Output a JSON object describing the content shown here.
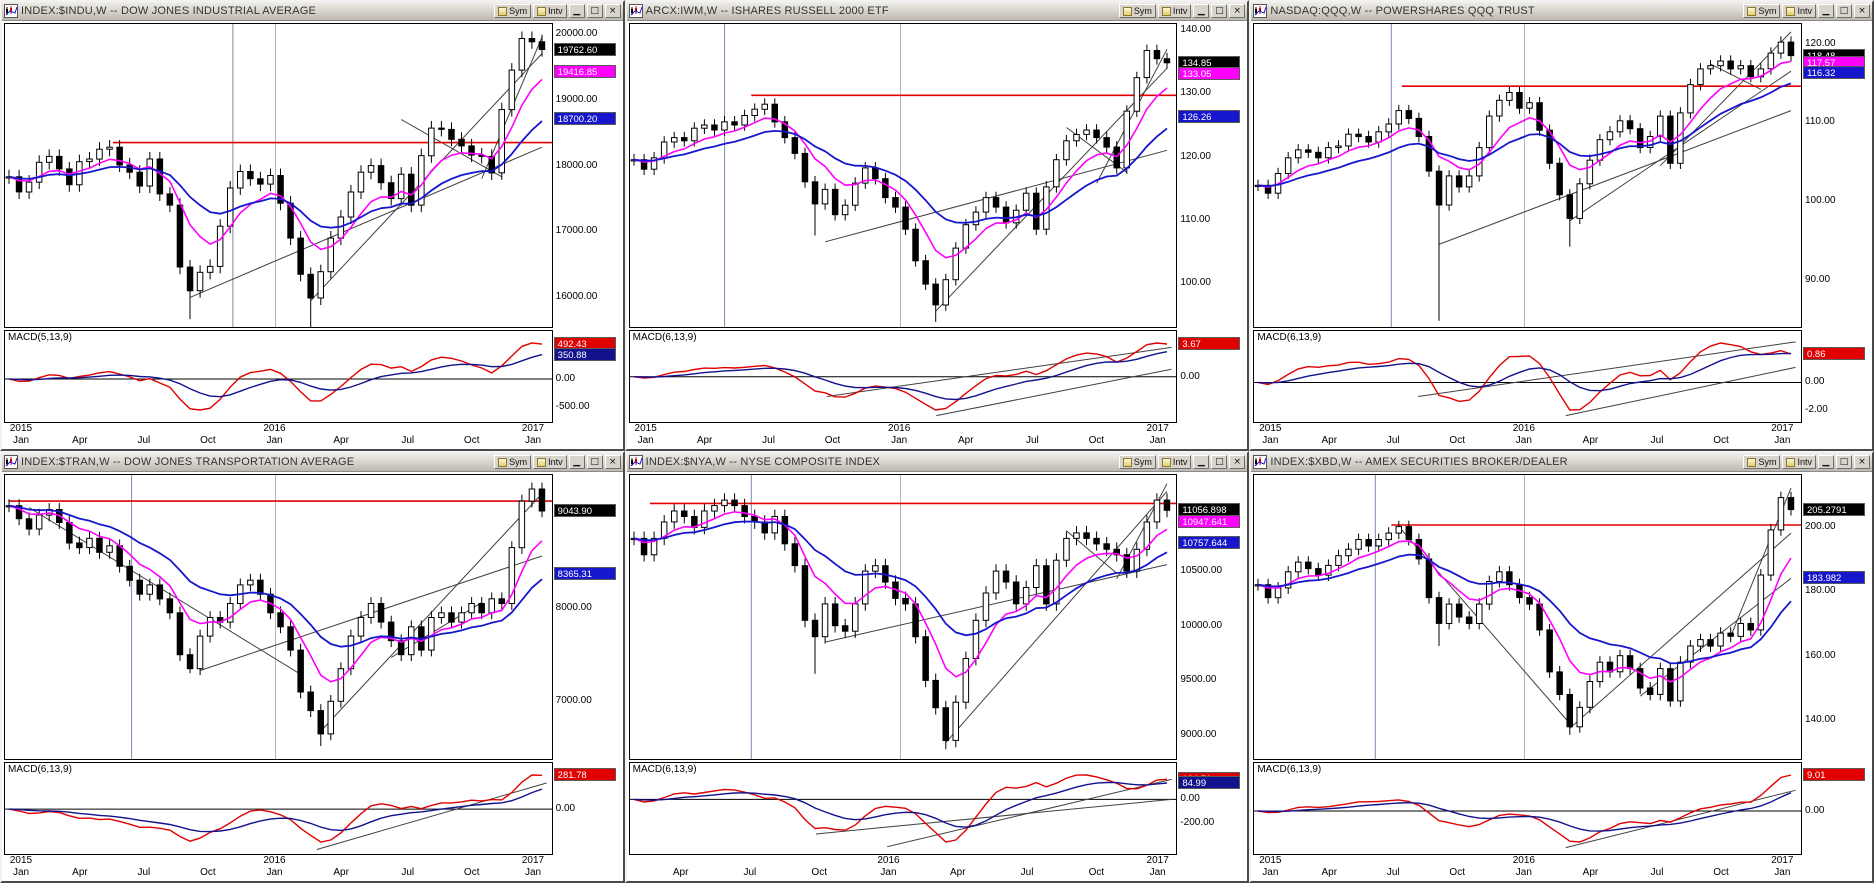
{
  "app": {
    "name": "multi-chart workspace",
    "background": "#808080"
  },
  "chrome": {
    "sym_label": "Sym",
    "intv_label": "Intv",
    "minimize_glyph": "▁",
    "restore_glyph": "□",
    "close_glyph": "×"
  },
  "colors": {
    "up_fill": "#ffffff",
    "down_fill": "#000000",
    "candle": "#000000",
    "ma_fast": "#ff00ff",
    "ma_slow": "#1616cc",
    "macd_line": "#e00000",
    "macd_signal": "#12128c",
    "resistance": "#e00000",
    "trendline": "#404040",
    "grid": "#b4b4b4",
    "cursor": "#7d88a8",
    "label_black": "#000000",
    "label_magenta": "#ff00ff",
    "label_blue": "#1616cc"
  },
  "default_xticks": [
    {
      "f": 0.02,
      "year": "2015",
      "month": "Jan"
    },
    {
      "f": 0.135,
      "month": "Apr"
    },
    {
      "f": 0.255,
      "month": "Jul"
    },
    {
      "f": 0.375,
      "month": "Oct"
    },
    {
      "f": 0.5,
      "year": "2016",
      "month": "Jan"
    },
    {
      "f": 0.625,
      "month": "Apr"
    },
    {
      "f": 0.75,
      "month": "Jul"
    },
    {
      "f": 0.87,
      "month": "Oct"
    },
    {
      "f": 0.985,
      "year": "2017",
      "month": "Jan"
    }
  ],
  "chart_data": [
    {
      "type": "candlestick",
      "title": "INDEX:$INDU,W -- DOW JONES INDUSTRIAL AVERAGE",
      "interval": "Weekly",
      "macd_label": "MACD(5,13,9)",
      "macd_params": [
        5,
        13,
        9
      ],
      "ylim": [
        15550,
        20150
      ],
      "yticks": [
        {
          "v": 20000,
          "label": "20000.00"
        },
        {
          "v": 19000,
          "label": "19000.00"
        },
        {
          "v": 18000,
          "label": "18000.00"
        },
        {
          "v": 17000,
          "label": "17000.00"
        },
        {
          "v": 16000,
          "label": "16000.00"
        }
      ],
      "closes": [
        17830,
        17600,
        17750,
        18050,
        18140,
        17950,
        17710,
        18060,
        18100,
        18250,
        18280,
        18010,
        17900,
        17690,
        18100,
        17570,
        17400,
        16460,
        16100,
        16380,
        16470,
        17080,
        17660,
        17910,
        17800,
        17720,
        17850,
        17430,
        16900,
        16350,
        15990,
        16390,
        16900,
        17220,
        17600,
        17900,
        18000,
        17740,
        17500,
        17870,
        17400,
        18150,
        18570,
        18550,
        18400,
        18300,
        18160,
        18140,
        17890,
        18850,
        19450,
        19930,
        19880,
        19762.6
      ],
      "spike_lows": [
        [
          18,
          15670
        ],
        [
          30,
          15500
        ]
      ],
      "resistance": {
        "value": 18350,
        "from": 0.195
      },
      "trendlines": [
        [
          18,
          16000,
          53,
          18280
        ],
        [
          30,
          15950,
          53,
          19700
        ],
        [
          47,
          17800,
          53,
          19950
        ],
        [
          39,
          18700,
          49,
          17830
        ]
      ],
      "vlines": [
        0.42
      ],
      "price_labels": [
        {
          "value": 19762.6,
          "text": "19762.60",
          "bg": "#000000"
        },
        {
          "value": 19416.85,
          "text": "19416.85",
          "bg": "#ff00ff"
        },
        {
          "value": 18700.2,
          "text": "18700.20",
          "bg": "#1616cc"
        }
      ],
      "macd_ticks": [
        {
          "v": 0,
          "label": "0.00"
        },
        {
          "v": -500,
          "label": "-500.00"
        }
      ],
      "macd_labels": [
        {
          "series": "macd",
          "text": "492.43",
          "bg": "#e00000"
        },
        {
          "series": "signal",
          "text": "350.88",
          "bg": "#12128c"
        }
      ],
      "macd_lines": []
    },
    {
      "type": "candlestick",
      "title": "ARCX:IWM,W -- ISHARES RUSSELL 2000 ETF",
      "interval": "Weekly",
      "macd_label": "MACD(6,13,9)",
      "macd_params": [
        6,
        13,
        9
      ],
      "ylim": [
        93,
        141
      ],
      "yticks": [
        {
          "v": 140,
          "label": "140.00"
        },
        {
          "v": 130,
          "label": "130.00"
        },
        {
          "v": 120,
          "label": "120.00"
        },
        {
          "v": 110,
          "label": "110.00"
        },
        {
          "v": 100,
          "label": "100.00"
        }
      ],
      "closes": [
        119.5,
        118.0,
        119.8,
        122.3,
        123.0,
        122.5,
        124.5,
        125.0,
        124.2,
        125.5,
        125.0,
        126.5,
        127.5,
        128.3,
        125.5,
        123.0,
        120.5,
        116.0,
        112.5,
        114.8,
        110.8,
        112.3,
        115.8,
        118.2,
        116.5,
        113.5,
        112.0,
        108.5,
        103.5,
        99.8,
        96.5,
        100.5,
        105.5,
        109.2,
        111.2,
        113.5,
        112.0,
        109.5,
        111.5,
        114.2,
        108.5,
        115.2,
        119.5,
        122.5,
        123.5,
        124.2,
        123.0,
        121.5,
        118.2,
        127.2,
        132.5,
        136.8,
        135.5,
        134.85
      ],
      "spike_lows": [
        [
          18,
          107.5
        ],
        [
          30,
          93.8
        ]
      ],
      "resistance": {
        "value": 129.7,
        "from": 0.22
      },
      "trendlines": [
        [
          19,
          106.5,
          53,
          121
        ],
        [
          30,
          95.5,
          53,
          134
        ],
        [
          46,
          115.8,
          53,
          137
        ],
        [
          43,
          124.6,
          49,
          117.5
        ]
      ],
      "vlines": [
        0.17
      ],
      "price_labels": [
        {
          "value": 134.85,
          "text": "134.85",
          "bg": "#000000"
        },
        {
          "value": 133.05,
          "text": "133.05",
          "bg": "#ff00ff"
        },
        {
          "value": 126.26,
          "text": "126.26",
          "bg": "#1616cc"
        }
      ],
      "macd_ticks": [
        {
          "v": 0,
          "label": "0.00"
        }
      ],
      "macd_labels": [
        {
          "series": "macd",
          "text": "3.67",
          "bg": "#e00000"
        }
      ],
      "macd_lines": [
        [
          0.36,
          0.72,
          0.99,
          0.18
        ],
        [
          0.56,
          0.93,
          0.99,
          0.42
        ]
      ]
    },
    {
      "type": "candlestick",
      "title": "NASDAQ:QQQ,W -- POWERSHARES QQQ TRUST",
      "interval": "Weekly",
      "macd_label": "MACD(6,13,9)",
      "macd_params": [
        6,
        13,
        9
      ],
      "ylim": [
        84,
        122.5
      ],
      "yticks": [
        {
          "v": 120,
          "label": "120.00"
        },
        {
          "v": 110,
          "label": "110.00"
        },
        {
          "v": 100,
          "label": "100.00"
        },
        {
          "v": 90,
          "label": "90.00"
        }
      ],
      "closes": [
        102.0,
        101.0,
        103.5,
        105.5,
        106.5,
        106.2,
        105.5,
        106.8,
        107.0,
        108.5,
        108.2,
        107.5,
        108.8,
        109.8,
        111.5,
        110.5,
        108.2,
        103.8,
        99.5,
        103.2,
        101.8,
        103.2,
        106.8,
        110.8,
        112.8,
        113.8,
        111.8,
        112.5,
        109.0,
        104.8,
        100.8,
        97.8,
        102.2,
        105.2,
        107.8,
        108.8,
        110.2,
        109.2,
        106.8,
        108.2,
        110.8,
        104.8,
        111.2,
        114.8,
        116.8,
        117.2,
        117.8,
        116.8,
        117.2,
        115.8,
        116.8,
        118.8,
        120.2,
        118.48
      ],
      "spike_lows": [
        [
          18,
          84.8
        ],
        [
          31,
          94.2
        ]
      ],
      "resistance": {
        "value": 114.6,
        "from": 0.27
      },
      "trendlines": [
        [
          31,
          97.5,
          53,
          116.5
        ],
        [
          18,
          94.5,
          53,
          111.5
        ],
        [
          40,
          104.5,
          53,
          121.5
        ],
        [
          45,
          117.4,
          50,
          114.2
        ]
      ],
      "vlines": [
        0.25
      ],
      "price_labels": [
        {
          "value": 118.48,
          "text": "118.48",
          "bg": "#000000"
        },
        {
          "value": 117.57,
          "text": "117.57",
          "bg": "#ff00ff"
        },
        {
          "value": 116.32,
          "text": "116.32",
          "bg": "#1616cc"
        }
      ],
      "macd_ticks": [
        {
          "v": 2,
          "label": "2.00"
        },
        {
          "v": 0,
          "label": "0.00"
        },
        {
          "v": -2,
          "label": "-2.00"
        }
      ],
      "macd_labels": [
        {
          "series": "macd",
          "text": "0.86",
          "bg": "#e00000"
        }
      ],
      "macd_lines": [
        [
          0.3,
          0.72,
          0.99,
          0.12
        ],
        [
          0.57,
          0.93,
          0.99,
          0.4
        ]
      ]
    },
    {
      "type": "candlestick",
      "title": "INDEX:$TRAN,W -- DOW JONES TRANSPORTATION AVERAGE",
      "interval": "Weekly",
      "macd_label": "MACD(6,13,9)",
      "macd_params": [
        6,
        13,
        9
      ],
      "ylim": [
        6380,
        9430
      ],
      "yticks": [
        {
          "v": 9000,
          "label": "9000.00"
        },
        {
          "v": 8000,
          "label": "8000.00"
        },
        {
          "v": 7000,
          "label": "7000.00"
        }
      ],
      "closes": [
        9100,
        8960,
        8850,
        9000,
        9060,
        8920,
        8700,
        8650,
        8750,
        8600,
        8670,
        8450,
        8300,
        8150,
        8250,
        8100,
        7950,
        7500,
        7350,
        7700,
        7900,
        7850,
        8050,
        8250,
        8300,
        8150,
        7950,
        7800,
        7550,
        7100,
        6900,
        6650,
        7000,
        7350,
        7700,
        7900,
        8050,
        7850,
        7650,
        7500,
        7800,
        7550,
        7900,
        7950,
        7850,
        7950,
        8050,
        7950,
        8100,
        8050,
        8650,
        9150,
        9280,
        9043.9
      ],
      "spike_lows": [
        [
          18,
          7300
        ],
        [
          31,
          6520
        ]
      ],
      "resistance": {
        "value": 9150,
        "from": 0.0
      },
      "trendlines": [
        [
          2,
          9080,
          29,
          7290
        ],
        [
          31,
          6680,
          53,
          9230
        ],
        [
          19,
          7330,
          53,
          8560
        ],
        [
          38,
          7470,
          47,
          8060
        ]
      ],
      "vlines": [
        0.23
      ],
      "price_labels": [
        {
          "value": 9043.9,
          "text": "9043.90",
          "bg": "#000000"
        },
        {
          "value": 8365.31,
          "text": "8365.31",
          "bg": "#1616cc"
        }
      ],
      "macd_ticks": [
        {
          "v": 0,
          "label": "0.00"
        }
      ],
      "macd_labels": [
        {
          "series": "macd",
          "text": "281.78",
          "bg": "#e00000"
        }
      ],
      "macd_lines": [
        [
          0.57,
          0.95,
          0.99,
          0.22
        ]
      ]
    },
    {
      "type": "candlestick",
      "title": "INDEX:$NYA,W -- NYSE COMPOSITE INDEX",
      "interval": "Weekly",
      "macd_label": "MACD(6,13,9)",
      "macd_params": [
        6,
        13,
        9
      ],
      "ylim": [
        8780,
        11380
      ],
      "yticks": [
        {
          "v": 10500,
          "label": "10500.00"
        },
        {
          "v": 10000,
          "label": "10000.00"
        },
        {
          "v": 9500,
          "label": "9500.00"
        },
        {
          "v": 9000,
          "label": "9000.00"
        }
      ],
      "closes": [
        10800,
        10650,
        10800,
        10950,
        11050,
        11000,
        10900,
        11050,
        11100,
        11150,
        11100,
        11000,
        10950,
        10850,
        11000,
        10750,
        10550,
        10050,
        9900,
        10200,
        10000,
        9950,
        10200,
        10500,
        10550,
        10400,
        10250,
        10200,
        9900,
        9500,
        9250,
        8950,
        9300,
        9700,
        10050,
        10300,
        10500,
        10400,
        10200,
        10350,
        10550,
        10200,
        10600,
        10800,
        10850,
        10800,
        10750,
        10700,
        10650,
        10500,
        10700,
        10950,
        11150,
        11056.9
      ],
      "spike_lows": [
        [
          18,
          9560
        ],
        [
          31,
          8870
        ]
      ],
      "resistance": {
        "value": 11120,
        "from": 0.03
      },
      "trendlines": [
        [
          31,
          8930,
          53,
          11230
        ],
        [
          19,
          9850,
          53,
          10560
        ],
        [
          43,
          10870,
          48,
          10480
        ],
        [
          48,
          10430,
          53,
          11300
        ]
      ],
      "vlines": [
        0.22
      ],
      "price_labels": [
        {
          "value": 11056.898,
          "text": "11056.898",
          "bg": "#000000"
        },
        {
          "value": 10947.641,
          "text": "10947.641",
          "bg": "#ff00ff"
        },
        {
          "value": 10757.644,
          "text": "10757.644",
          "bg": "#1616cc"
        }
      ],
      "macd_ticks": [
        {
          "v": 0,
          "label": "0.00"
        },
        {
          "v": -200,
          "label": "-200.00"
        }
      ],
      "macd_labels": [
        {
          "series": "macd",
          "text": "134.51",
          "bg": "#e00000"
        },
        {
          "series": "signal",
          "text": "84.99",
          "bg": "#12128c"
        }
      ],
      "macd_lines": [
        [
          0.34,
          0.78,
          0.99,
          0.4
        ],
        [
          0.47,
          0.92,
          0.99,
          0.18
        ]
      ],
      "xticks": [
        {
          "f": 0.09,
          "month": "Apr"
        },
        {
          "f": 0.22,
          "month": "Jul"
        },
        {
          "f": 0.35,
          "month": "Oct"
        },
        {
          "f": 0.48,
          "year": "2016",
          "month": "Jan"
        },
        {
          "f": 0.61,
          "month": "Apr"
        },
        {
          "f": 0.74,
          "month": "Jul"
        },
        {
          "f": 0.87,
          "month": "Oct"
        },
        {
          "f": 0.985,
          "year": "2017",
          "month": "Jan"
        }
      ]
    },
    {
      "type": "candlestick",
      "title": "INDEX:$XBD,W -- AMEX SECURITIES BROKER/DEALER",
      "interval": "Weekly",
      "macd_label": "MACD(6,13,9)",
      "macd_params": [
        6,
        13,
        9
      ],
      "ylim": [
        128,
        216
      ],
      "yticks": [
        {
          "v": 200,
          "label": "200.00"
        },
        {
          "v": 180,
          "label": "180.00"
        },
        {
          "v": 160,
          "label": "160.00"
        },
        {
          "v": 140,
          "label": "140.00"
        }
      ],
      "closes": [
        182,
        178,
        181,
        186,
        189,
        187,
        185,
        188,
        191,
        193,
        196,
        194,
        196,
        198,
        200,
        196,
        190,
        178,
        170,
        176,
        172,
        170,
        176,
        183,
        186,
        182,
        178,
        176,
        168,
        155,
        148,
        138,
        144,
        152,
        158,
        155,
        160,
        156,
        150,
        148,
        156,
        146,
        158,
        163,
        165,
        163,
        167,
        166,
        170,
        168,
        185,
        199,
        209,
        205.28
      ],
      "spike_lows": [
        [
          18,
          163
        ],
        [
          31,
          135.5
        ]
      ],
      "resistance": {
        "value": 200.5,
        "from": 0.25
      },
      "trendlines": [
        [
          14,
          200,
          31,
          139
        ],
        [
          31,
          137.5,
          53,
          198
        ],
        [
          38,
          147.5,
          53,
          184
        ],
        [
          47,
          166,
          53,
          212
        ]
      ],
      "vlines": [
        0.22
      ],
      "price_labels": [
        {
          "value": 205.2791,
          "text": "205.2791",
          "bg": "#000000"
        },
        {
          "value": 183.982,
          "text": "183.982",
          "bg": "#1616cc"
        }
      ],
      "macd_ticks": [
        {
          "v": 0,
          "label": "0.00"
        }
      ],
      "macd_labels": [
        {
          "series": "macd",
          "text": "9.01",
          "bg": "#e00000"
        }
      ],
      "macd_lines": [
        [
          0.57,
          0.93,
          0.99,
          0.3
        ]
      ]
    }
  ]
}
